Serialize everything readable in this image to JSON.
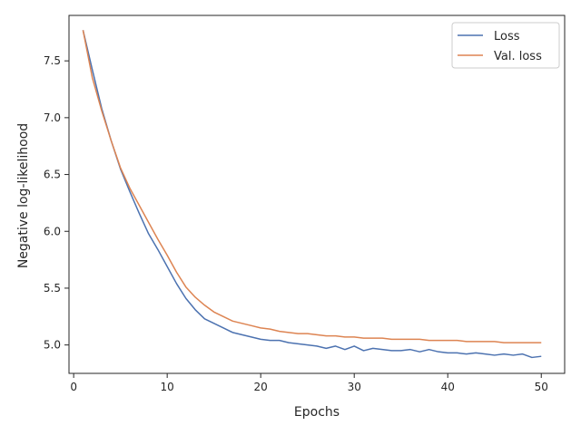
{
  "chart_data": {
    "type": "line",
    "title": "",
    "xlabel": "Epochs",
    "ylabel": "Negative log-likelihood",
    "xlim": [
      -0.5,
      52.5
    ],
    "ylim": [
      4.75,
      7.9
    ],
    "xticks": [
      0,
      10,
      20,
      30,
      40,
      50
    ],
    "yticks": [
      5.0,
      5.5,
      6.0,
      6.5,
      7.0,
      7.5
    ],
    "xtick_labels": [
      "0",
      "10",
      "20",
      "30",
      "40",
      "50"
    ],
    "ytick_labels": [
      "5.0",
      "5.5",
      "6.0",
      "6.5",
      "7.0",
      "7.5"
    ],
    "grid": false,
    "legend_position": "top-right",
    "x": [
      1,
      2,
      3,
      4,
      5,
      6,
      7,
      8,
      9,
      10,
      11,
      12,
      13,
      14,
      15,
      16,
      17,
      18,
      19,
      20,
      21,
      22,
      23,
      24,
      25,
      26,
      27,
      28,
      29,
      30,
      31,
      32,
      33,
      34,
      35,
      36,
      37,
      38,
      39,
      40,
      41,
      42,
      43,
      44,
      45,
      46,
      47,
      48,
      49,
      50
    ],
    "series": [
      {
        "name": "Loss",
        "color": "#4c72b0",
        "values": [
          7.77,
          7.42,
          7.08,
          6.8,
          6.55,
          6.35,
          6.16,
          5.98,
          5.84,
          5.69,
          5.54,
          5.41,
          5.31,
          5.23,
          5.19,
          5.15,
          5.11,
          5.09,
          5.07,
          5.05,
          5.04,
          5.04,
          5.02,
          5.01,
          5.0,
          4.99,
          4.97,
          4.99,
          4.96,
          4.99,
          4.95,
          4.97,
          4.96,
          4.95,
          4.95,
          4.96,
          4.94,
          4.96,
          4.94,
          4.93,
          4.93,
          4.92,
          4.93,
          4.92,
          4.91,
          4.92,
          4.91,
          4.92,
          4.89,
          4.9
        ]
      },
      {
        "name": "Val. loss",
        "color": "#dd8452",
        "values": [
          7.77,
          7.35,
          7.06,
          6.8,
          6.56,
          6.38,
          6.23,
          6.08,
          5.93,
          5.79,
          5.64,
          5.51,
          5.42,
          5.35,
          5.29,
          5.25,
          5.21,
          5.19,
          5.17,
          5.15,
          5.14,
          5.12,
          5.11,
          5.1,
          5.1,
          5.09,
          5.08,
          5.08,
          5.07,
          5.07,
          5.06,
          5.06,
          5.06,
          5.05,
          5.05,
          5.05,
          5.05,
          5.04,
          5.04,
          5.04,
          5.04,
          5.03,
          5.03,
          5.03,
          5.03,
          5.02,
          5.02,
          5.02,
          5.02,
          5.02
        ]
      }
    ]
  }
}
